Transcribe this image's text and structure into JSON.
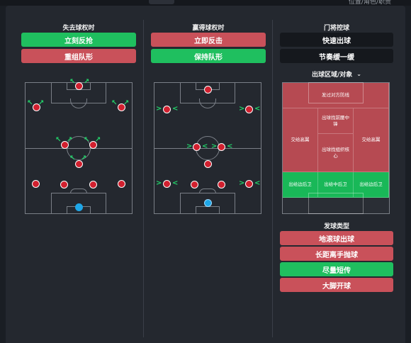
{
  "topbar": {
    "right_text": "位置/角色/职责"
  },
  "columns": {
    "lose": {
      "title": "失去球权时",
      "buttons": [
        {
          "label": "立刻反抢",
          "color": "green"
        },
        {
          "label": "重组队形",
          "color": "red"
        }
      ]
    },
    "win": {
      "title": "赢得球权时",
      "buttons": [
        {
          "label": "立即反击",
          "color": "red"
        },
        {
          "label": "保持队形",
          "color": "green"
        }
      ]
    },
    "gk": {
      "title": "门将控球",
      "buttons": [
        {
          "label": "快速出球",
          "color": "dark"
        },
        {
          "label": "节奏缓一缓",
          "color": "dark"
        }
      ],
      "dropdown_label": "出球区域/对象",
      "zones": {
        "top": "发过对方防线",
        "center_top": "出球找前腰中锋",
        "left_mid": "交给高翼",
        "right_mid": "交给高翼",
        "center_mid": "出球找组织核心",
        "bottom_left": "出给边后卫",
        "bottom_center": "出给中后卫",
        "bottom_right": "出给边后卫"
      },
      "distribution_title": "发球类型",
      "distribution_buttons": [
        {
          "label": "地滚球出球",
          "color": "red"
        },
        {
          "label": "长距离手抛球",
          "color": "red"
        },
        {
          "label": "尽量短传",
          "color": "green"
        },
        {
          "label": "大脚开球",
          "color": "red"
        }
      ]
    }
  },
  "colors": {
    "green": "#1fbf5f",
    "red": "#c9515a",
    "player": "#d1202f",
    "goalkeeper": "#1ea7e8",
    "arrow": "#22d36a"
  }
}
